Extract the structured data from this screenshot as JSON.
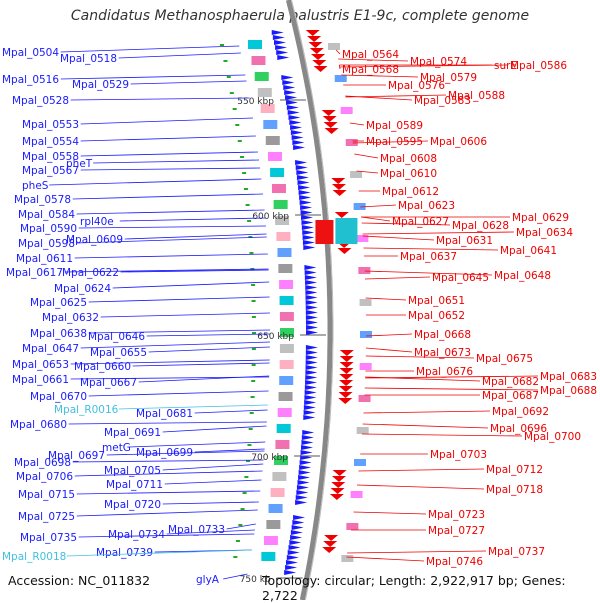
{
  "title": "Candidatus Methanosphaerula palustris E1-9c, complete genome",
  "accession": "Accession: NC_011832",
  "topology": "Topology: circular; Length: 2,922,917 bp; Genes: 2,722",
  "colors": {
    "forward": "#1a1aff",
    "reverse": "#ee0000",
    "rna": "#40c0e0",
    "backbone": "#888888"
  },
  "kbp_ticks": [
    "550 kbp",
    "600 kbp",
    "650 kbp",
    "700 kbp",
    "750 kb"
  ],
  "left_labels": [
    {
      "text": "Mpal_0504",
      "type": "gene"
    },
    {
      "text": "Mpal_0518",
      "type": "gene"
    },
    {
      "text": "Mpal_0516",
      "type": "gene"
    },
    {
      "text": "Mpal_0529",
      "type": "gene"
    },
    {
      "text": "Mpal_0528",
      "type": "gene"
    },
    {
      "text": "Mpal_0553",
      "type": "gene"
    },
    {
      "text": "Mpal_0554",
      "type": "gene"
    },
    {
      "text": "Mpal_0558",
      "type": "gene"
    },
    {
      "text": "pheT",
      "type": "gene"
    },
    {
      "text": "Mpal_0567",
      "type": "gene"
    },
    {
      "text": "pheS",
      "type": "gene"
    },
    {
      "text": "Mpal_0578",
      "type": "gene"
    },
    {
      "text": "Mpal_0584",
      "type": "gene"
    },
    {
      "text": "rpl40e",
      "type": "gene"
    },
    {
      "text": "Mpal_0590",
      "type": "gene"
    },
    {
      "text": "Mpal_0598",
      "type": "gene"
    },
    {
      "text": "Mpal_0609",
      "type": "gene"
    },
    {
      "text": "Mpal_0611",
      "type": "gene"
    },
    {
      "text": "Mpal_0617",
      "type": "gene"
    },
    {
      "text": "Mpal_0622",
      "type": "gene"
    },
    {
      "text": "Mpal_0624",
      "type": "gene"
    },
    {
      "text": "Mpal_0625",
      "type": "gene"
    },
    {
      "text": "Mpal_0632",
      "type": "gene"
    },
    {
      "text": "Mpal_0638",
      "type": "gene"
    },
    {
      "text": "Mpal_0646",
      "type": "gene"
    },
    {
      "text": "Mpal_0647",
      "type": "gene"
    },
    {
      "text": "Mpal_0655",
      "type": "gene"
    },
    {
      "text": "Mpal_0653",
      "type": "gene"
    },
    {
      "text": "Mpal_0660",
      "type": "gene"
    },
    {
      "text": "Mpal_0661",
      "type": "gene"
    },
    {
      "text": "Mpal_0667",
      "type": "gene"
    },
    {
      "text": "Mpal_0670",
      "type": "gene"
    },
    {
      "text": "Mpal_R0016",
      "type": "rna"
    },
    {
      "text": "Mpal_0681",
      "type": "gene"
    },
    {
      "text": "Mpal_0680",
      "type": "gene"
    },
    {
      "text": "Mpal_0691",
      "type": "gene"
    },
    {
      "text": "metG",
      "type": "gene"
    },
    {
      "text": "Mpal_0697",
      "type": "gene"
    },
    {
      "text": "Mpal_0699",
      "type": "gene"
    },
    {
      "text": "Mpal_0698",
      "type": "gene"
    },
    {
      "text": "Mpal_0705",
      "type": "gene"
    },
    {
      "text": "Mpal_0706",
      "type": "gene"
    },
    {
      "text": "Mpal_0711",
      "type": "gene"
    },
    {
      "text": "Mpal_0715",
      "type": "gene"
    },
    {
      "text": "Mpal_0720",
      "type": "gene"
    },
    {
      "text": "Mpal_0725",
      "type": "gene"
    },
    {
      "text": "Mpal_0733",
      "type": "gene"
    },
    {
      "text": "Mpal_0734",
      "type": "gene"
    },
    {
      "text": "Mpal_0735",
      "type": "gene"
    },
    {
      "text": "Mpal_0739",
      "type": "gene"
    },
    {
      "text": "Mpal_R0018",
      "type": "rna"
    },
    {
      "text": "glyA",
      "type": "gene"
    }
  ],
  "right_labels": [
    "Mpal_0564",
    "Mpal_0574",
    "surE",
    "Mpal_0586",
    "Mpal_0568",
    "Mpal_0579",
    "Mpal_0576",
    "Mpal_0588",
    "Mpal_0583",
    "Mpal_0589",
    "Mpal_0595",
    "Mpal_0606",
    "Mpal_0608",
    "Mpal_0610",
    "Mpal_0612",
    "Mpal_0623",
    "Mpal_0627",
    "Mpal_0628",
    "Mpal_0629",
    "Mpal_0634",
    "Mpal_0631",
    "Mpal_0641",
    "Mpal_0637",
    "Mpal_0645",
    "Mpal_0648",
    "Mpal_0651",
    "Mpal_0652",
    "Mpal_0668",
    "Mpal_0673",
    "Mpal_0675",
    "Mpal_0676",
    "Mpal_0683",
    "Mpal_0682",
    "Mpal_0688",
    "Mpal_0687",
    "Mpal_0692",
    "Mpal_0696",
    "Mpal_0700",
    "Mpal_0703",
    "Mpal_0712",
    "Mpal_0718",
    "Mpal_0723",
    "Mpal_0727",
    "Mpal_0737",
    "Mpal_0746"
  ]
}
